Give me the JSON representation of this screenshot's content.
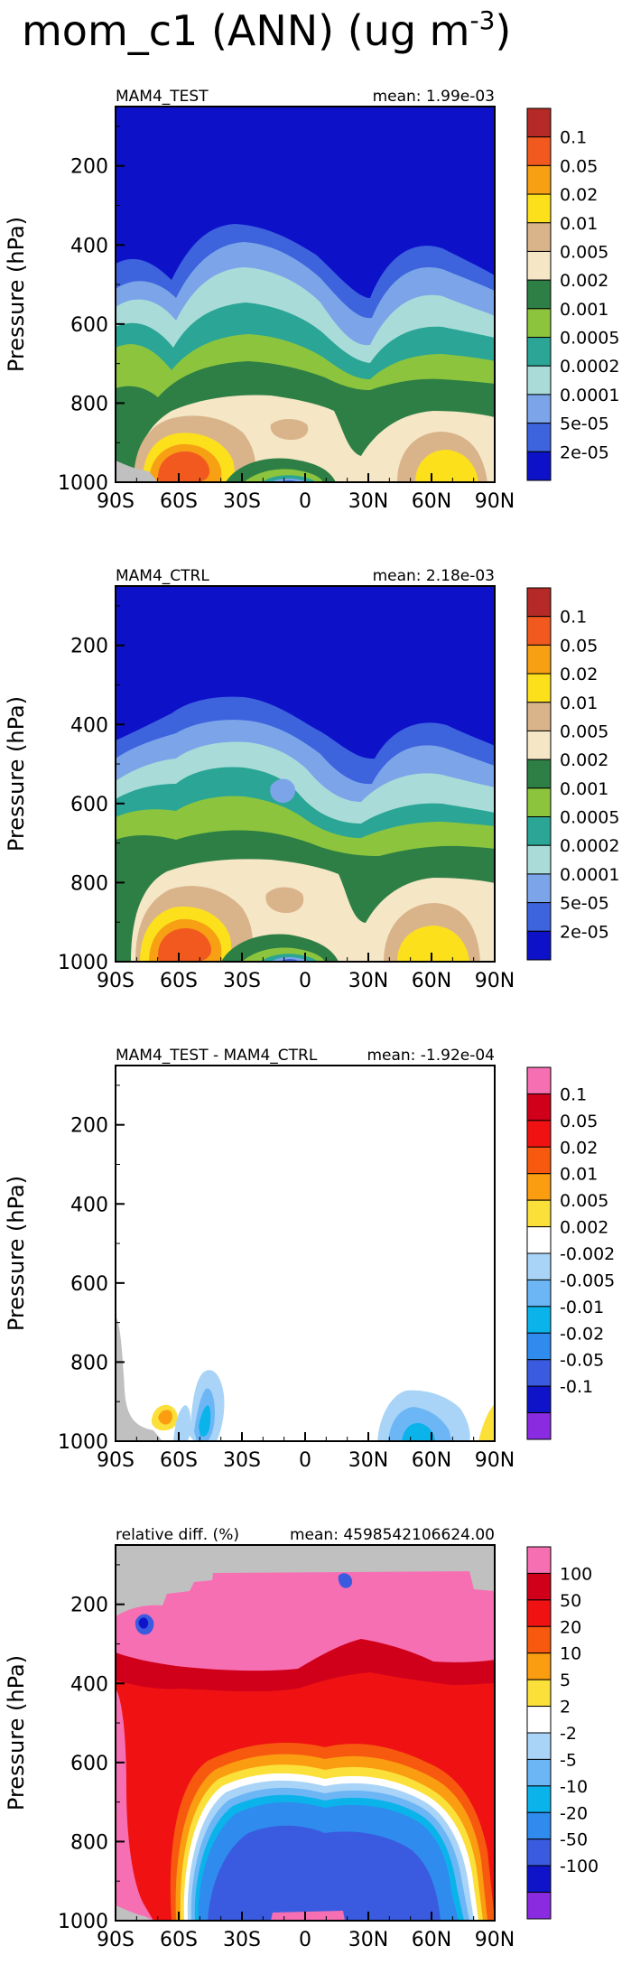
{
  "figure": {
    "title": "mom_c1 (ANN) (ug m",
    "title_superscript": "-3",
    "title_close": ")"
  },
  "chart_data": [
    {
      "type": "heatmap",
      "id": "test",
      "left_label": "MAM4_TEST",
      "right_label": "mean: 1.99e-03",
      "ylabel": "Pressure (hPa)",
      "xlabel": "",
      "x_ticks": [
        "90S",
        "60S",
        "30S",
        "0",
        "30N",
        "60N",
        "90N"
      ],
      "y_ticks": [
        "200",
        "400",
        "600",
        "800",
        "1000"
      ],
      "xlim": [
        -90,
        90
      ],
      "ylim": [
        1000,
        50
      ],
      "y_reversed": true,
      "colorbar": {
        "labels": [
          "0.1",
          "0.05",
          "0.02",
          "0.01",
          "0.005",
          "0.002",
          "0.001",
          "0.0005",
          "0.0002",
          "0.0001",
          "5e-05",
          "2e-05"
        ],
        "colors": [
          "#b52a26",
          "#f2591f",
          "#f7a014",
          "#fce01c",
          "#d9b48b",
          "#f5e6c5",
          "#2e7f45",
          "#8cc53d",
          "#2aa596",
          "#a9dcd8",
          "#7ba5e8",
          "#3d63dd",
          "#0d12c9"
        ]
      }
    },
    {
      "type": "heatmap",
      "id": "ctrl",
      "left_label": "MAM4_CTRL",
      "right_label": "mean: 2.18e-03",
      "ylabel": "Pressure (hPa)",
      "xlabel": "",
      "x_ticks": [
        "90S",
        "60S",
        "30S",
        "0",
        "30N",
        "60N",
        "90N"
      ],
      "y_ticks": [
        "200",
        "400",
        "600",
        "800",
        "1000"
      ],
      "xlim": [
        -90,
        90
      ],
      "ylim": [
        1000,
        50
      ],
      "y_reversed": true,
      "colorbar": {
        "labels": [
          "0.1",
          "0.05",
          "0.02",
          "0.01",
          "0.005",
          "0.002",
          "0.001",
          "0.0005",
          "0.0002",
          "0.0001",
          "5e-05",
          "2e-05"
        ],
        "colors": [
          "#b52a26",
          "#f2591f",
          "#f7a014",
          "#fce01c",
          "#d9b48b",
          "#f5e6c5",
          "#2e7f45",
          "#8cc53d",
          "#2aa596",
          "#a9dcd8",
          "#7ba5e8",
          "#3d63dd",
          "#0d12c9"
        ]
      }
    },
    {
      "type": "heatmap",
      "id": "diff",
      "left_label": "MAM4_TEST - MAM4_CTRL",
      "right_label": "mean: -1.92e-04",
      "ylabel": "Pressure (hPa)",
      "xlabel": "",
      "x_ticks": [
        "90S",
        "60S",
        "30S",
        "0",
        "30N",
        "60N",
        "90N"
      ],
      "y_ticks": [
        "200",
        "400",
        "600",
        "800",
        "1000"
      ],
      "xlim": [
        -90,
        90
      ],
      "ylim": [
        1000,
        50
      ],
      "y_reversed": true,
      "colorbar": {
        "labels": [
          "0.1",
          "0.05",
          "0.02",
          "0.01",
          "0.005",
          "0.002",
          "-0.002",
          "-0.005",
          "-0.01",
          "-0.02",
          "-0.05",
          "-0.1"
        ],
        "colors": [
          "#f76fb3",
          "#d1001a",
          "#f01212",
          "#f75a0f",
          "#fa9d11",
          "#fbe03a",
          "#ffffff",
          "#a9d4f7",
          "#6cb6f5",
          "#0ab4eb",
          "#2f8bee",
          "#3a5be0",
          "#0f14c8",
          "#8a2be2"
        ]
      }
    },
    {
      "type": "heatmap",
      "id": "rel",
      "left_label": "relative diff. (%)",
      "right_label": "mean: 4598542106624.00",
      "ylabel": "Pressure (hPa)",
      "xlabel": "",
      "x_ticks": [
        "90S",
        "60S",
        "30S",
        "0",
        "30N",
        "60N",
        "90N"
      ],
      "y_ticks": [
        "200",
        "400",
        "600",
        "800",
        "1000"
      ],
      "xlim": [
        -90,
        90
      ],
      "ylim": [
        1000,
        50
      ],
      "y_reversed": true,
      "colorbar": {
        "labels": [
          "100",
          "50",
          "20",
          "10",
          "5",
          "2",
          "-2",
          "-5",
          "-10",
          "-20",
          "-50",
          "-100"
        ],
        "colors": [
          "#f76fb3",
          "#d1001a",
          "#f01212",
          "#f75a0f",
          "#fa9d11",
          "#fbe03a",
          "#ffffff",
          "#a9d4f7",
          "#6cb6f5",
          "#0ab4eb",
          "#2f8bee",
          "#3a5be0",
          "#0f14c8",
          "#8a2be2"
        ]
      }
    }
  ]
}
